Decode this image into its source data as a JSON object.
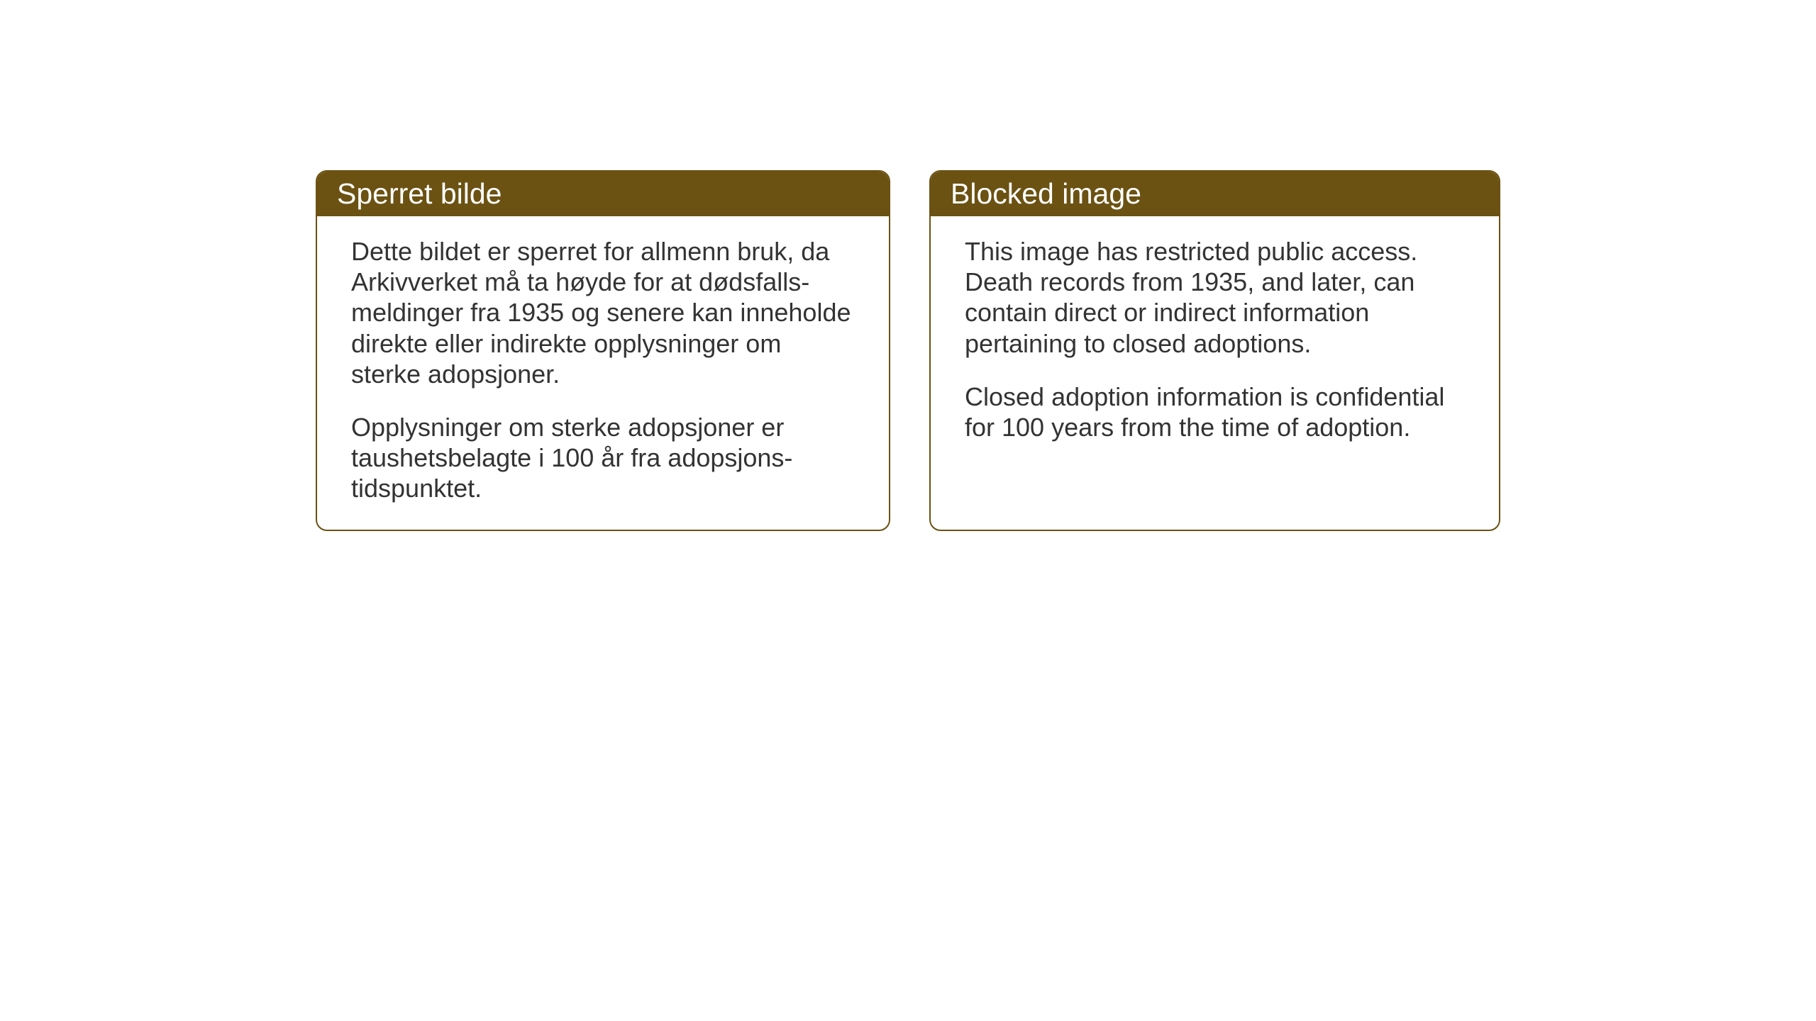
{
  "cards": {
    "norwegian": {
      "title": "Sperret bilde",
      "paragraph1": "Dette bildet er sperret for allmenn bruk, da Arkivverket må ta høyde for at dødsfalls-meldinger fra 1935 og senere kan inneholde direkte eller indirekte opplysninger om sterke adopsjoner.",
      "paragraph2": "Opplysninger om sterke adopsjoner er taushetsbelagte i 100 år fra adopsjons-tidspunktet."
    },
    "english": {
      "title": "Blocked image",
      "paragraph1": "This image has restricted public access. Death records from 1935, and later, can contain direct or indirect information pertaining to closed adoptions.",
      "paragraph2": "Closed adoption information is confidential for 100 years from the time of adoption."
    }
  },
  "styling": {
    "header_bg_color": "#6b5213",
    "header_text_color": "#ffffff",
    "border_color": "#6b5213",
    "body_bg_color": "#ffffff",
    "body_text_color": "#333333",
    "header_fontsize": 41,
    "body_fontsize": 36,
    "border_radius": 16,
    "border_width": 2
  }
}
